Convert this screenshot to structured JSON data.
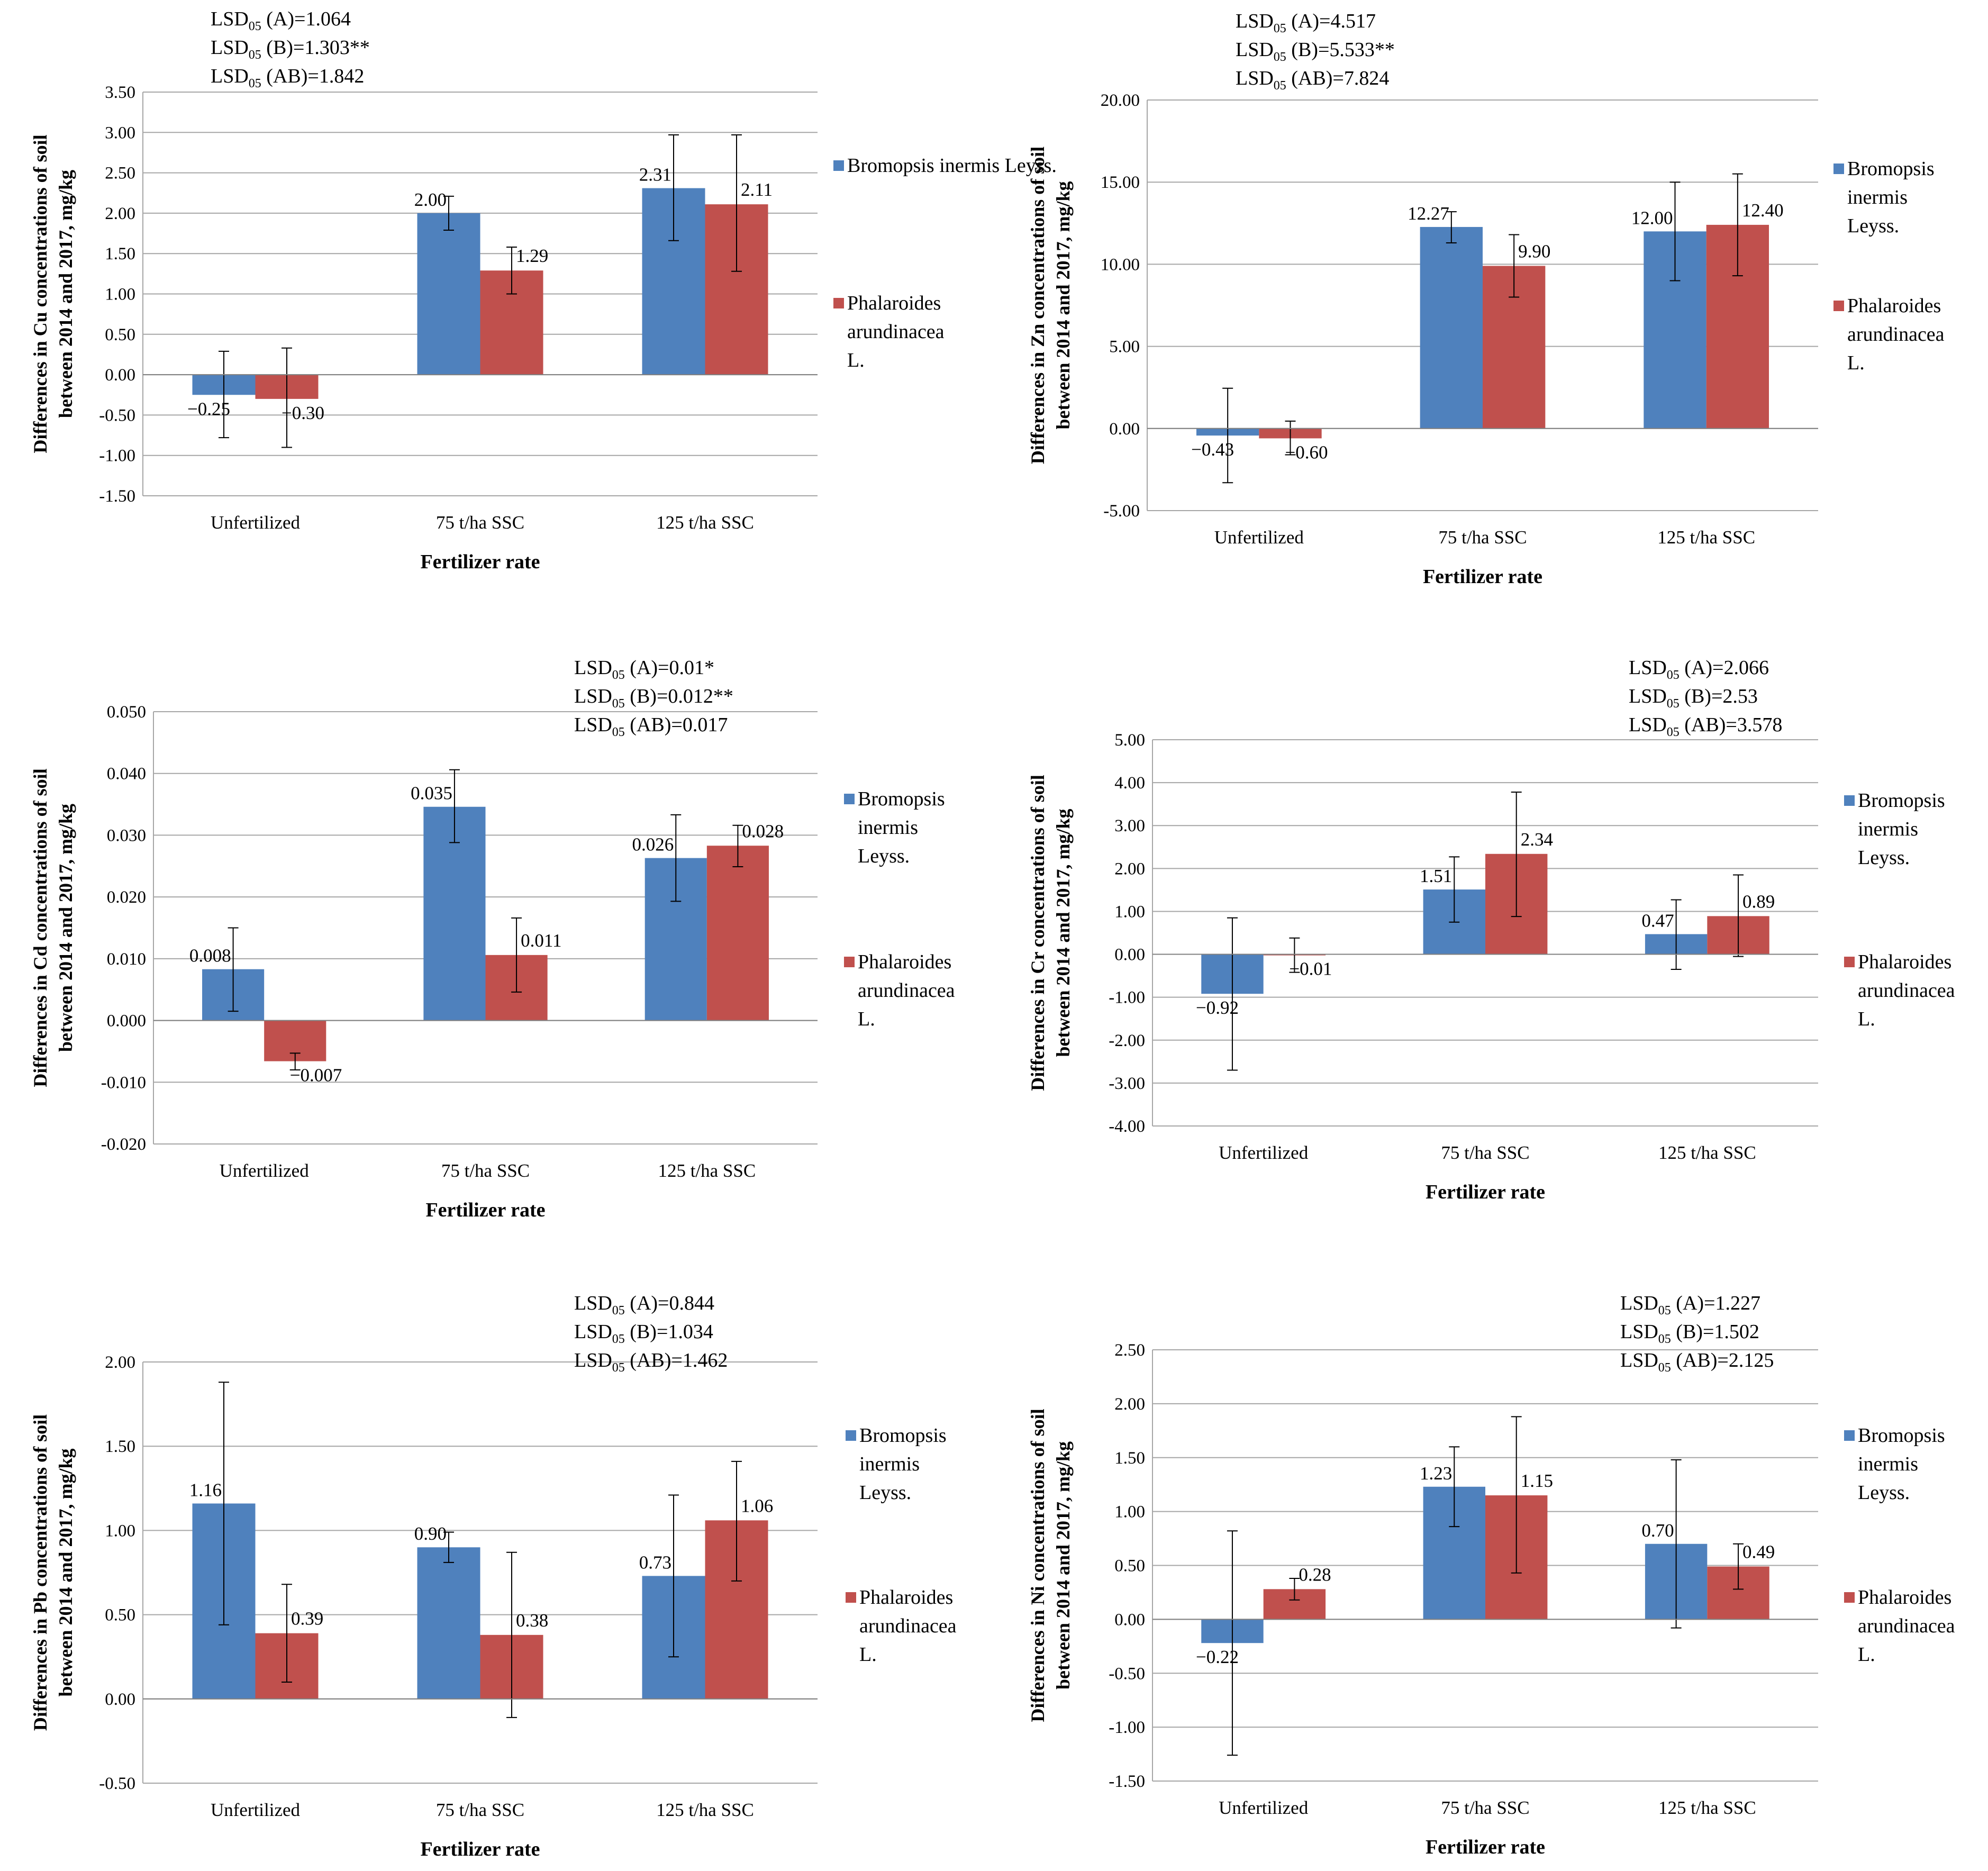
{
  "figure": {
    "series_colors": [
      "#4F81BD",
      "#C0504D"
    ]
  },
  "chart_data": [
    {
      "type": "bar",
      "ylabel": [
        "Differences in Cu concentrations of soil",
        "between 2014 and 2017, mg/kg"
      ],
      "xlabel": "Fertilizer rate",
      "categories": [
        "Unfertilized",
        "75 t/ha SSC",
        "125 t/ha SSC"
      ],
      "ylim": [
        -1.5,
        3.5
      ],
      "ystep": 0.5,
      "tick_decimals": 2,
      "yticks": [
        "-1.50",
        "-1.00",
        "-0.50",
        "0.00",
        "0.50",
        "1.00",
        "1.50",
        "2.00",
        "2.50",
        "3.00",
        "3.50"
      ],
      "series": [
        {
          "name": [
            "Bromopsis inermis Leyss."
          ],
          "values": [
            -0.25,
            2.0,
            2.31
          ],
          "labels": [
            "−0.25",
            "2.00",
            "2.31"
          ],
          "err_low": [
            -0.78,
            1.79,
            1.66
          ],
          "err_high": [
            0.29,
            2.21,
            2.97
          ]
        },
        {
          "name": [
            "Phalaroides",
            "arundinacea",
            "L."
          ],
          "values": [
            -0.3,
            1.29,
            2.11
          ],
          "labels": [
            "−0.30",
            "1.29",
            "2.11"
          ],
          "err_low": [
            -0.9,
            1.0,
            1.28
          ],
          "err_high": [
            0.33,
            1.58,
            2.97
          ]
        }
      ],
      "lsd": [
        {
          "prefix": "LSD",
          "sub": "05",
          "text": " (A)=1.064"
        },
        {
          "prefix": "LSD",
          "sub": "05",
          "text": " (B)=1.303**"
        },
        {
          "prefix": "LSD",
          "sub": "05",
          "text": " (AB)=1.842"
        }
      ]
    },
    {
      "type": "bar",
      "ylabel": [
        "Differences in Zn concentrations of soil",
        "between 2014 and 2017, mg/kg"
      ],
      "xlabel": "Fertilizer rate",
      "categories": [
        "Unfertilized",
        "75 t/ha SSC",
        "125 t/ha SSC"
      ],
      "ylim": [
        -5,
        20
      ],
      "ystep": 5,
      "tick_decimals": 2,
      "yticks": [
        "-5.00",
        "0.00",
        "5.00",
        "10.00",
        "15.00",
        "20.00"
      ],
      "series": [
        {
          "name": [
            "Bromopsis",
            "inermis",
            "Leyss."
          ],
          "values": [
            -0.43,
            12.27,
            12.0
          ],
          "labels": [
            "−0.43",
            "12.27",
            "12.00"
          ],
          "err_low": [
            -3.3,
            11.3,
            9.0
          ],
          "err_high": [
            2.45,
            13.2,
            15.0
          ]
        },
        {
          "name": [
            "Phalaroides",
            "arundinacea",
            "L."
          ],
          "values": [
            -0.6,
            9.9,
            12.4
          ],
          "labels": [
            "−0.60",
            "9.90",
            "12.40"
          ],
          "err_low": [
            -1.6,
            8.0,
            9.3
          ],
          "err_high": [
            0.45,
            11.8,
            15.5
          ]
        }
      ],
      "lsd": [
        {
          "prefix": "LSD",
          "sub": "05",
          "text": " (A)=4.517"
        },
        {
          "prefix": "LSD",
          "sub": "05",
          "text": " (B)=5.533**"
        },
        {
          "prefix": "LSD",
          "sub": "05",
          "text": " (AB)=7.824"
        }
      ]
    },
    {
      "type": "bar",
      "ylabel": [
        "Differences in Cd concentrations of soil",
        "between 2014 and 2017, mg/kg"
      ],
      "xlabel": "Fertilizer rate",
      "categories": [
        "Unfertilized",
        "75 t/ha SSC",
        "125 t/ha SSC"
      ],
      "ylim": [
        -0.02,
        0.05
      ],
      "ystep": 0.01,
      "tick_decimals": 3,
      "yticks": [
        "-0.020",
        "-0.010",
        "0.000",
        "0.010",
        "0.020",
        "0.030",
        "0.040",
        "0.050"
      ],
      "series": [
        {
          "name": [
            "Bromopsis",
            "inermis",
            "Leyss."
          ],
          "values": [
            0.0083,
            0.0346,
            0.0263
          ],
          "labels": [
            "0.008",
            "0.035",
            "0.026"
          ],
          "err_low": [
            0.0015,
            0.0288,
            0.0193
          ],
          "err_high": [
            0.015,
            0.0406,
            0.0333
          ]
        },
        {
          "name": [
            "Phalaroides",
            "arundinacea",
            "L."
          ],
          "values": [
            -0.0066,
            0.0106,
            0.0283
          ],
          "labels": [
            "−0.007",
            "0.011",
            "0.028"
          ],
          "err_low": [
            -0.008,
            0.0046,
            0.0249
          ],
          "err_high": [
            -0.0053,
            0.0166,
            0.0316
          ]
        }
      ],
      "lsd": [
        {
          "prefix": "LSD",
          "sub": "05",
          "text": " (A)=0.01*"
        },
        {
          "prefix": "LSD",
          "sub": "05",
          "text": " (B)=0.012**"
        },
        {
          "prefix": "LSD",
          "sub": "05",
          "text": " (AB)=0.017"
        }
      ]
    },
    {
      "type": "bar",
      "ylabel": [
        "Differences in Cr concentrations of soil",
        "between 2014 and 2017, mg/kg"
      ],
      "xlabel": "Fertilizer rate",
      "categories": [
        "Unfertilized",
        "75 t/ha SSC",
        "125 t/ha SSC"
      ],
      "ylim": [
        -4,
        5
      ],
      "ystep": 1,
      "tick_decimals": 2,
      "yticks": [
        "-4.00",
        "-3.00",
        "-2.00",
        "-1.00",
        "0.00",
        "1.00",
        "2.00",
        "3.00",
        "4.00",
        "5.00"
      ],
      "series": [
        {
          "name": [
            "Bromopsis",
            "inermis",
            "Leyss."
          ],
          "values": [
            -0.92,
            1.51,
            0.47
          ],
          "labels": [
            "−0.92",
            "1.51",
            "0.47"
          ],
          "err_low": [
            -2.7,
            0.75,
            -0.35
          ],
          "err_high": [
            0.85,
            2.27,
            1.27
          ]
        },
        {
          "name": [
            "Phalaroides",
            "arundinacea",
            "L."
          ],
          "values": [
            -0.01,
            2.34,
            0.89
          ],
          "labels": [
            "−0.01",
            "2.34",
            "0.89"
          ],
          "err_low": [
            -0.42,
            0.88,
            -0.05
          ],
          "err_high": [
            0.38,
            3.78,
            1.85
          ]
        }
      ],
      "lsd": [
        {
          "prefix": "LSD",
          "sub": "05",
          "text": " (A)=2.066"
        },
        {
          "prefix": "LSD",
          "sub": "05",
          "text": " (B)=2.53"
        },
        {
          "prefix": "LSD",
          "sub": "05",
          "text": " (AB)=3.578"
        }
      ]
    },
    {
      "type": "bar",
      "ylabel": [
        "Differences in Pb concentrations of soil",
        "between 2014 and 2017, mg/kg"
      ],
      "xlabel": "Fertilizer rate",
      "categories": [
        "Unfertilized",
        "75 t/ha SSC",
        "125 t/ha SSC"
      ],
      "ylim": [
        -0.5,
        2.0
      ],
      "ystep": 0.5,
      "tick_decimals": 2,
      "yticks": [
        "-0.50",
        "0.00",
        "0.50",
        "1.00",
        "1.50",
        "2.00"
      ],
      "series": [
        {
          "name": [
            "Bromopsis",
            "inermis",
            "Leyss."
          ],
          "values": [
            1.16,
            0.9,
            0.73
          ],
          "labels": [
            "1.16",
            "0.90",
            "0.73"
          ],
          "err_low": [
            0.44,
            0.81,
            0.25
          ],
          "err_high": [
            1.88,
            0.99,
            1.21
          ]
        },
        {
          "name": [
            "Phalaroides",
            "arundinacea",
            "L."
          ],
          "values": [
            0.39,
            0.38,
            1.06
          ],
          "labels": [
            "0.39",
            "0.38",
            "1.06"
          ],
          "err_low": [
            0.1,
            -0.11,
            0.7
          ],
          "err_high": [
            0.68,
            0.87,
            1.41
          ]
        }
      ],
      "lsd": [
        {
          "prefix": "LSD",
          "sub": "05",
          "text": " (A)=0.844"
        },
        {
          "prefix": "LSD",
          "sub": "05",
          "text": " (B)=1.034"
        },
        {
          "prefix": "LSD",
          "sub": "05",
          "text": " (AB)=1.462"
        }
      ]
    },
    {
      "type": "bar",
      "ylabel": [
        "Differences in Ni concentrations of soil",
        "between 2014 and 2017, mg/kg"
      ],
      "xlabel": "Fertilizer rate",
      "categories": [
        "Unfertilized",
        "75 t/ha SSC",
        "125 t/ha SSC"
      ],
      "ylim": [
        -1.5,
        2.5
      ],
      "ystep": 0.5,
      "tick_decimals": 2,
      "yticks": [
        "-1.50",
        "-1.00",
        "-0.50",
        "0.00",
        "0.50",
        "1.00",
        "1.50",
        "2.00",
        "2.50"
      ],
      "series": [
        {
          "name": [
            "Bromopsis",
            "inermis",
            "Leyss."
          ],
          "values": [
            -0.22,
            1.23,
            0.7
          ],
          "labels": [
            "−0.22",
            "1.23",
            "0.70"
          ],
          "err_low": [
            -1.26,
            0.86,
            -0.08
          ],
          "err_high": [
            0.82,
            1.6,
            1.48
          ]
        },
        {
          "name": [
            "Phalaroides",
            "arundinacea",
            "L."
          ],
          "values": [
            0.28,
            1.15,
            0.49
          ],
          "labels": [
            "0.28",
            "1.15",
            "0.49"
          ],
          "err_low": [
            0.18,
            0.43,
            0.28
          ],
          "err_high": [
            0.38,
            1.88,
            0.7
          ]
        }
      ],
      "lsd": [
        {
          "prefix": "LSD",
          "sub": "05",
          "text": " (A)=1.227"
        },
        {
          "prefix": "LSD",
          "sub": "05",
          "text": " (B)=1.502"
        },
        {
          "prefix": "LSD",
          "sub": "05",
          "text": " (AB)=2.125"
        }
      ]
    }
  ]
}
